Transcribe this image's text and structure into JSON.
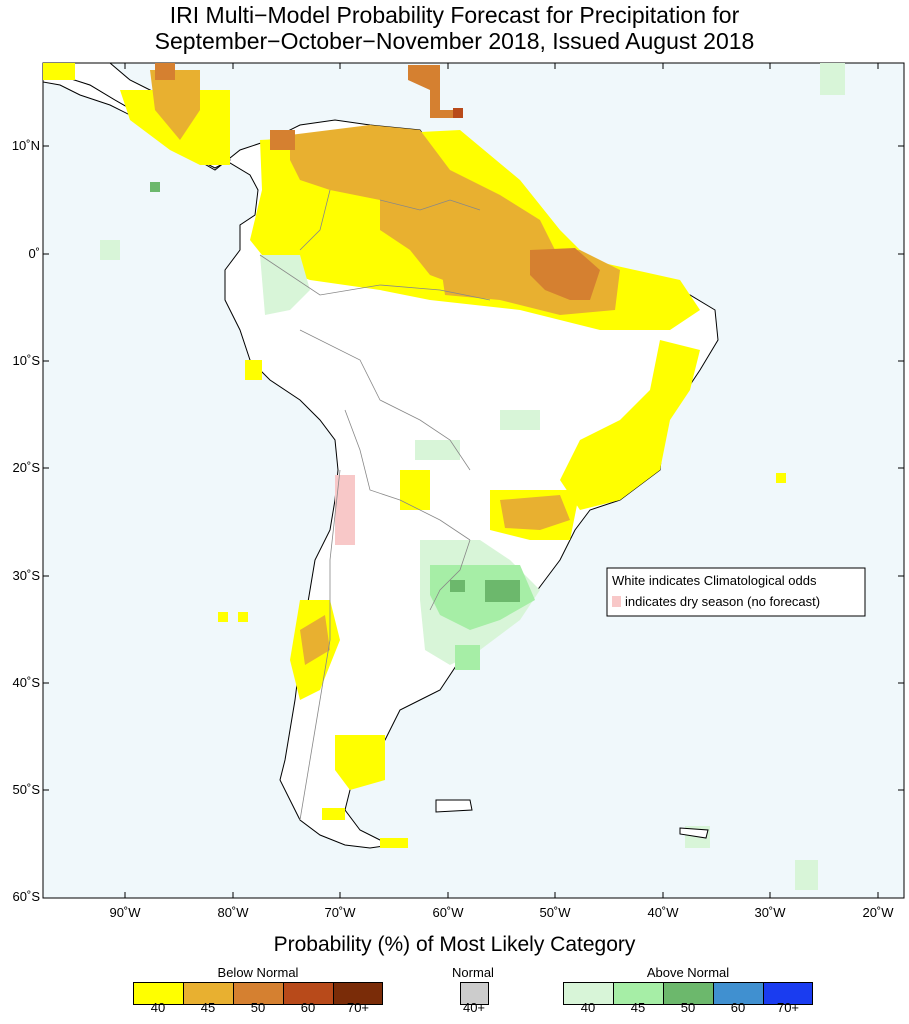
{
  "title_line1": "IRI Multi−Model Probability Forecast for Precipitation for",
  "title_line2": "September−October−November 2018, Issued August 2018",
  "subtitle": "Probability (%) of Most Likely Category",
  "axes": {
    "lat_labels": [
      "10˚N",
      "0˚",
      "10˚S",
      "20˚S",
      "30˚S",
      "40˚S",
      "50˚S",
      "60˚S"
    ],
    "lon_labels": [
      "90˚W",
      "80˚W",
      "70˚W",
      "60˚W",
      "50˚W",
      "40˚W",
      "30˚W",
      "20˚W"
    ]
  },
  "info_box": {
    "line1": "White indicates Climatological odds",
    "line2": "indicates dry season (no forecast)",
    "dry_color": "#f8c8c8"
  },
  "legend": {
    "below": {
      "label": "Below Normal",
      "ticks": [
        "40",
        "45",
        "50",
        "60",
        "70+"
      ],
      "colors": [
        "#ffff00",
        "#e8b030",
        "#d58030",
        "#b84a1a",
        "#7a2c08"
      ]
    },
    "normal": {
      "label": "Normal",
      "ticks": [
        "40+"
      ],
      "colors": [
        "#cccccc"
      ]
    },
    "above": {
      "label": "Above Normal",
      "ticks": [
        "40",
        "45",
        "50",
        "60",
        "70+"
      ],
      "colors": [
        "#d8f5d8",
        "#a6eea6",
        "#6cb86c",
        "#4090d0",
        "#1a3cf0"
      ]
    }
  },
  "colors": {
    "ocean": "#f0f8fb",
    "land": "#ffffff",
    "border": "#000000"
  }
}
